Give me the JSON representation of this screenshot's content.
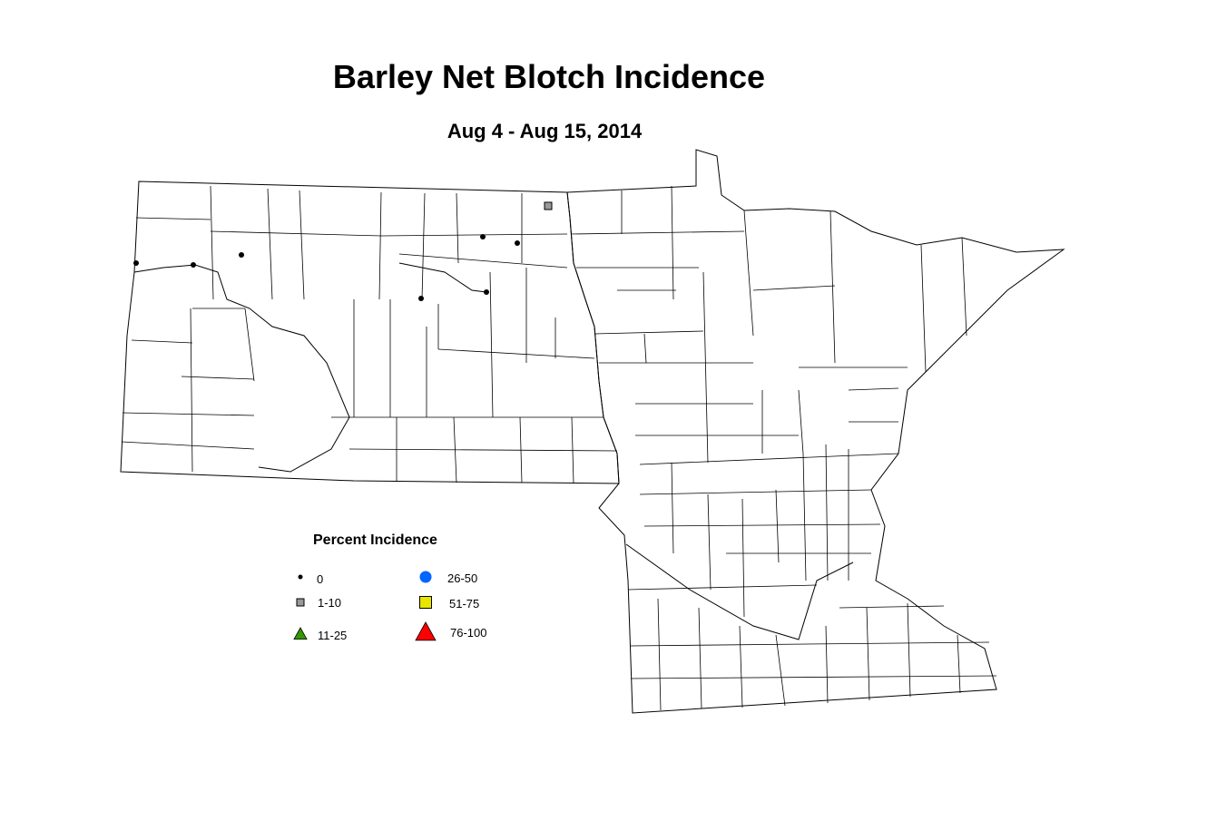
{
  "title": "Barley Net Blotch Incidence",
  "subtitle": "Aug 4 - Aug 15, 2014",
  "legend": {
    "title": "Percent Incidence",
    "items": [
      {
        "label": "0",
        "symbol": "small-dot",
        "color": "#000000"
      },
      {
        "label": "1-10",
        "symbol": "square",
        "color": "#999999"
      },
      {
        "label": "11-25",
        "symbol": "triangle",
        "color": "#339900"
      },
      {
        "label": "26-50",
        "symbol": "circle",
        "color": "#0066ff"
      },
      {
        "label": "51-75",
        "symbol": "square",
        "color": "#e6e600"
      },
      {
        "label": "76-100",
        "symbol": "triangle",
        "color": "#ff0000"
      }
    ]
  },
  "observations": [
    {
      "category": "0"
    },
    {
      "category": "0"
    },
    {
      "category": "0"
    },
    {
      "category": "0"
    },
    {
      "category": "0"
    },
    {
      "category": "0"
    },
    {
      "category": "0"
    },
    {
      "category": "1-10"
    }
  ]
}
